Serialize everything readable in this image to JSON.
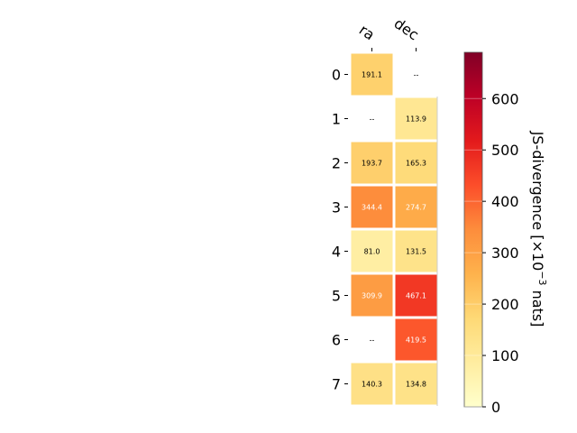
{
  "chart_data": {
    "type": "heatmap",
    "columns": [
      "ra",
      "dec"
    ],
    "rows": [
      "0",
      "1",
      "2",
      "3",
      "4",
      "5",
      "6",
      "7"
    ],
    "values": [
      [
        191.1,
        null
      ],
      [
        null,
        113.9
      ],
      [
        193.7,
        165.3
      ],
      [
        344.4,
        274.7
      ],
      [
        81.0,
        131.5
      ],
      [
        309.9,
        467.1
      ],
      [
        null,
        419.5
      ],
      [
        140.3,
        134.8
      ]
    ],
    "missing_label": "--",
    "colorbar": {
      "label_main": "JS-divergence [×10",
      "label_exp": "−3",
      "label_tail": " nats]",
      "range": [
        0,
        690
      ],
      "ticks": [
        "0",
        "100",
        "200",
        "300",
        "400",
        "500",
        "600"
      ],
      "colormap": "YlOrRd",
      "colors": [
        "#ffffcc",
        "#ffeda0",
        "#fed976",
        "#feb24c",
        "#fd8d3c",
        "#fc4e2a",
        "#e31a1c",
        "#bd0026",
        "#800026"
      ]
    }
  }
}
